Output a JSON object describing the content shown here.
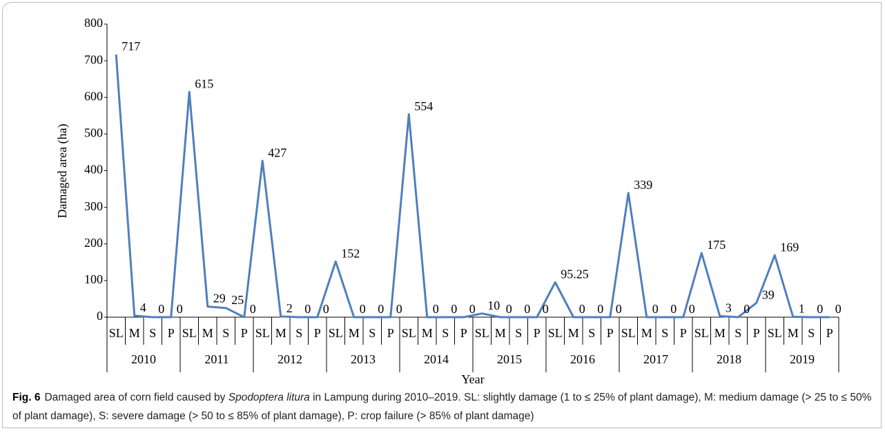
{
  "chart_data": {
    "type": "line",
    "x_label": "Year",
    "y_label": "Damaged area (ha)",
    "categories": [
      "SL",
      "M",
      "S",
      "P",
      "SL",
      "M",
      "S",
      "P",
      "SL",
      "M",
      "S",
      "P",
      "SL",
      "M",
      "S",
      "P",
      "SL",
      "M",
      "S",
      "P",
      "SL",
      "M",
      "S",
      "P",
      "SL",
      "M",
      "S",
      "P",
      "SL",
      "M",
      "S",
      "P",
      "SL",
      "M",
      "S",
      "P",
      "SL",
      "M",
      "S",
      "P"
    ],
    "groups": [
      "2010",
      "2011",
      "2012",
      "2013",
      "2014",
      "2015",
      "2016",
      "2017",
      "2018",
      "2019"
    ],
    "series": [
      {
        "color": "#4f7fbc",
        "values": [
          717,
          4,
          0,
          0,
          615,
          29,
          25,
          0,
          427,
          2,
          0,
          0,
          152,
          0,
          0,
          0,
          554,
          0,
          0,
          0,
          10,
          0,
          0,
          0,
          95.25,
          0,
          0,
          0,
          339,
          0,
          0,
          0,
          175,
          3,
          0,
          39,
          169,
          1,
          0,
          0
        ]
      }
    ],
    "ylim": [
      0,
      800
    ],
    "yticks": [
      0,
      100,
      200,
      300,
      400,
      500,
      600,
      700,
      800
    ],
    "grid": false,
    "caption": {
      "label": "Fig. 6",
      "parts": [
        "Damaged area of corn field caused by ",
        "Spodoptera litura",
        " in Lampung during 2010–2019. SL: slightly damage (1 to ≤ 25% of plant damage), M: medium damage (> 25 to ≤ 50% of plant damage), S: severe damage (> 50 to ≤ 85% of plant damage), P: crop failure (> 85% of plant damage)"
      ]
    }
  }
}
